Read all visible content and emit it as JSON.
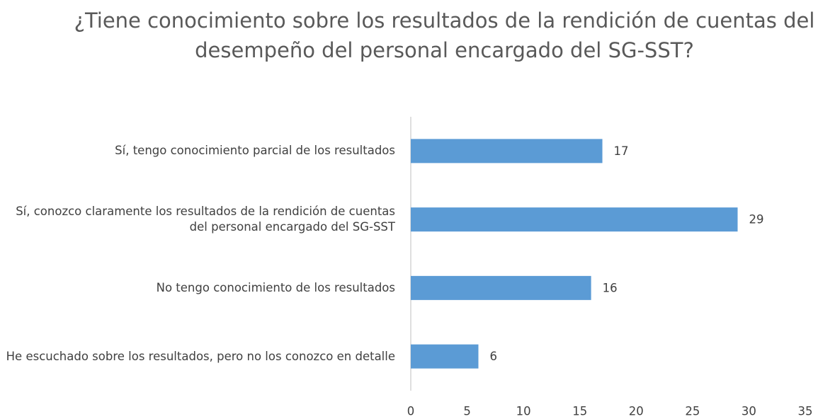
{
  "chart_data": {
    "type": "hbar",
    "title": "¿Tiene conocimiento sobre los resultados de la rendición de cuentas del desempeño del personal encargado del SG-SST?",
    "categories": [
      "Sí, tengo conocimiento parcial de los resultados",
      "Sí, conozco claramente los resultados de la rendición de cuentas del personal encargado del SG-SST",
      "No tengo conocimiento de los resultados",
      "He escuchado sobre los resultados, pero no los conozco en detalle"
    ],
    "values": [
      17,
      29,
      16,
      6
    ],
    "color": "#5b9bd5",
    "xlim": [
      0,
      35
    ],
    "xticks": [
      0,
      5,
      10,
      15,
      20,
      25,
      30,
      35
    ],
    "grid": false
  }
}
